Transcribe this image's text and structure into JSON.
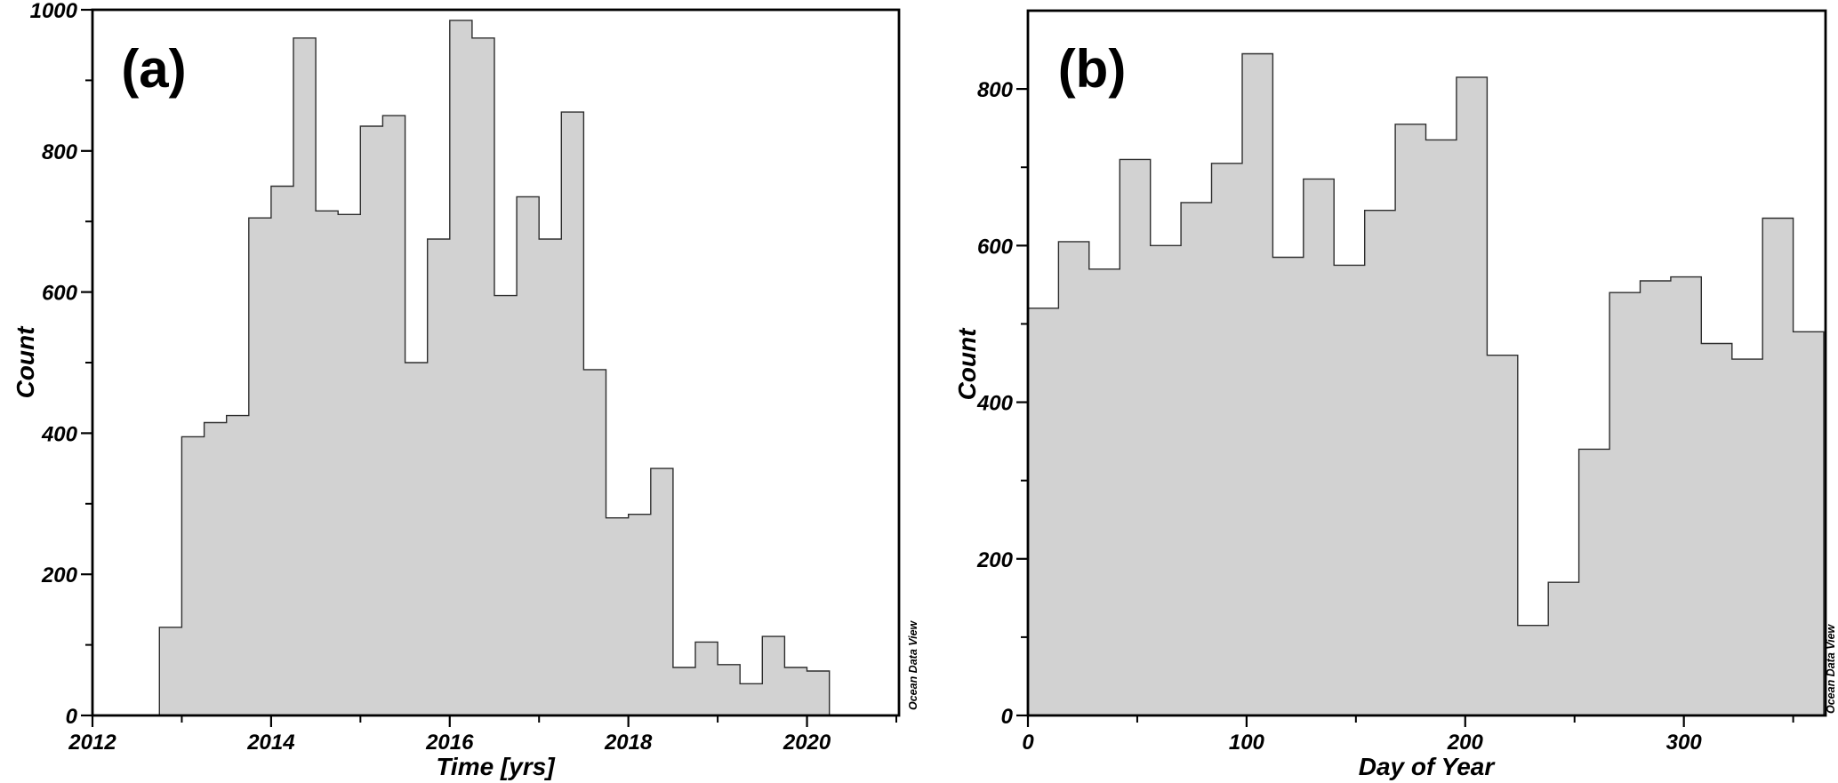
{
  "figure": {
    "watermark": "Ocean Data View",
    "background_color": "#ffffff",
    "bar_fill_color": "#d2d2d2",
    "bar_stroke_color": "#2e2e2e",
    "frame_color": "#000000",
    "text_color": "#000000"
  },
  "chart_data": [
    {
      "type": "bar",
      "subtype": "histogram",
      "panel_label": "(a)",
      "xlabel": "Time [yrs]",
      "ylabel": "Count",
      "xlim": [
        2012,
        2021.03
      ],
      "ylim": [
        0,
        1000
      ],
      "grid": false,
      "legend": "none",
      "x_major_ticks": [
        2012,
        2014,
        2016,
        2018,
        2020
      ],
      "x_tick_labels": [
        "2012",
        "2014",
        "2016",
        "2018",
        "2020"
      ],
      "x_minor_ticks": [
        2013,
        2015,
        2017,
        2019,
        2021
      ],
      "y_major_ticks": [
        0,
        200,
        400,
        600,
        800,
        1000
      ],
      "y_tick_labels": [
        "0",
        "200",
        "400",
        "600",
        "800",
        "1000"
      ],
      "y_minor_ticks": [
        100,
        300,
        500,
        700,
        900
      ],
      "bin_start": 2012.75,
      "bin_width": 0.25,
      "values": [
        125,
        395,
        415,
        425,
        705,
        750,
        960,
        715,
        710,
        835,
        850,
        500,
        675,
        985,
        960,
        595,
        735,
        675,
        855,
        490,
        280,
        285,
        350,
        68,
        104,
        72,
        45,
        112,
        68,
        63
      ]
    },
    {
      "type": "bar",
      "subtype": "histogram",
      "panel_label": "(b)",
      "xlabel": "Day of Year",
      "ylabel": "Count",
      "xlim": [
        0,
        364.8
      ],
      "ylim": [
        0,
        900
      ],
      "grid": false,
      "legend": "none",
      "x_major_ticks": [
        0,
        100,
        200,
        300
      ],
      "x_tick_labels": [
        "0",
        "100",
        "200",
        "300"
      ],
      "x_minor_ticks": [
        50,
        150,
        250,
        350
      ],
      "y_major_ticks": [
        0,
        200,
        400,
        600,
        800
      ],
      "y_tick_labels": [
        "0",
        "200",
        "400",
        "600",
        "800"
      ],
      "y_minor_ticks": [
        100,
        300,
        500,
        700
      ],
      "bin_start": 0,
      "bin_width": 14,
      "values": [
        520,
        605,
        570,
        710,
        600,
        655,
        705,
        845,
        585,
        685,
        575,
        645,
        755,
        735,
        815,
        460,
        115,
        170,
        340,
        540,
        555,
        560,
        475,
        455,
        635,
        490
      ]
    }
  ]
}
